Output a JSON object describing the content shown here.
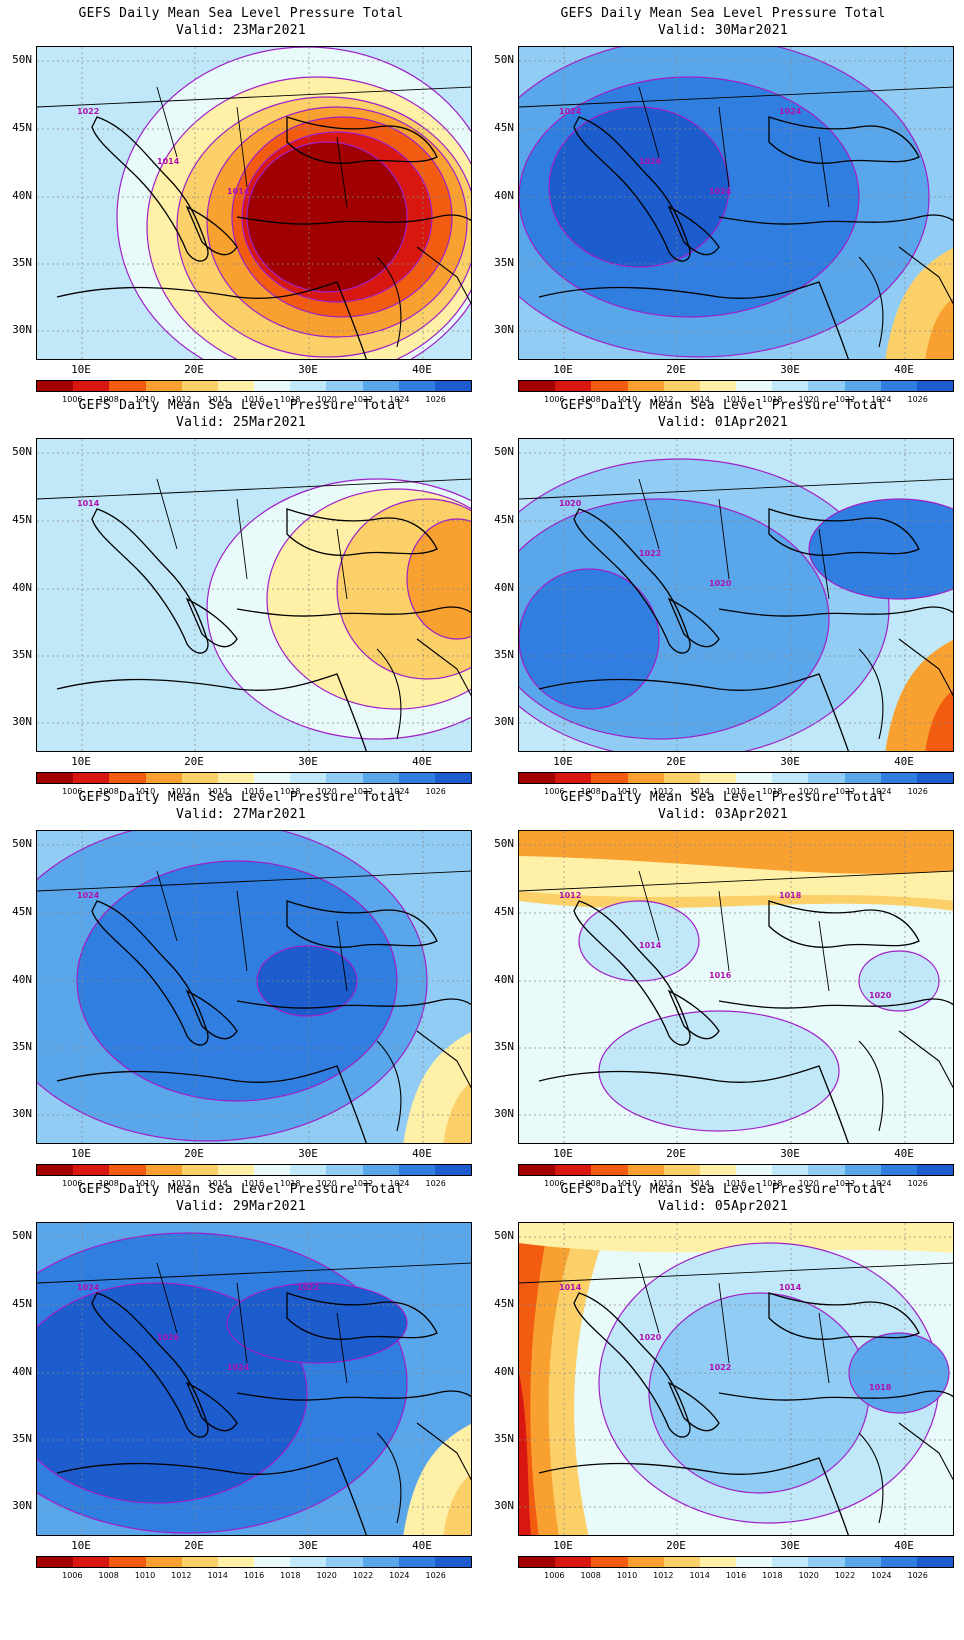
{
  "panels": [
    {
      "title": "GEFS Daily Mean Sea Level Pressure Total",
      "valid": "Valid: 23Mar2021",
      "pattern": "low",
      "labels": [
        "1022",
        "1014",
        "1014"
      ]
    },
    {
      "title": "GEFS Daily Mean Sea Level Pressure Total",
      "valid": "Valid: 30Mar2021",
      "pattern": "high",
      "labels": [
        "1024",
        "1026",
        "1024",
        "1024"
      ]
    },
    {
      "title": "GEFS Daily Mean Sea Level Pressure Total",
      "valid": "Valid: 25Mar2021",
      "pattern": "mid_low",
      "labels": [
        "1014"
      ]
    },
    {
      "title": "GEFS Daily Mean Sea Level Pressure Total",
      "valid": "Valid: 01Apr2021",
      "pattern": "mid_high",
      "labels": [
        "1020",
        "1022",
        "1020"
      ]
    },
    {
      "title": "GEFS Daily Mean Sea Level Pressure Total",
      "valid": "Valid: 27Mar2021",
      "pattern": "high2",
      "labels": [
        "1024"
      ]
    },
    {
      "title": "GEFS Daily Mean Sea Level Pressure Total",
      "valid": "Valid: 03Apr2021",
      "pattern": "flat",
      "labels": [
        "1012",
        "1014",
        "1016",
        "1018",
        "1020"
      ]
    },
    {
      "title": "GEFS Daily Mean Sea Level Pressure Total",
      "valid": "Valid: 29Mar2021",
      "pattern": "high3",
      "labels": [
        "1024",
        "1026",
        "1024",
        "1022"
      ]
    },
    {
      "title": "GEFS Daily Mean Sea Level Pressure Total",
      "valid": "Valid: 05Apr2021",
      "pattern": "west_low",
      "labels": [
        "1014",
        "1020",
        "1022",
        "1014",
        "1018"
      ]
    }
  ],
  "lat_labels": [
    "50N",
    "45N",
    "40N",
    "35N",
    "30N"
  ],
  "lon_labels": [
    "10E",
    "20E",
    "30E",
    "40E"
  ],
  "colorbar": {
    "levels": [
      "1006",
      "1008",
      "1010",
      "1012",
      "1014",
      "1016",
      "1018",
      "1020",
      "1022",
      "1024",
      "1026"
    ],
    "colors": [
      "#a00000",
      "#d81810",
      "#f25c10",
      "#f8a030",
      "#fbd068",
      "#fff0a8",
      "#e8fafa",
      "#c0e8f8",
      "#90ccf4",
      "#5aa6ea",
      "#2f7ee0",
      "#1c5ccc"
    ]
  }
}
